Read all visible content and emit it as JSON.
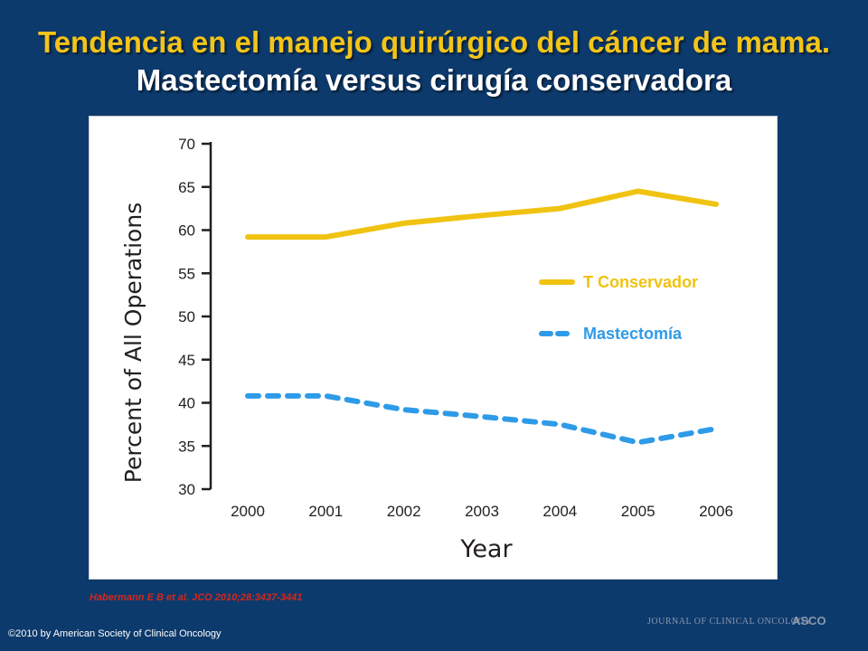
{
  "slide": {
    "title_part1": "Tendencia en el manejo quirúrgico del cáncer de mama.",
    "title_part2": "Mastectomía versus cirugía conservadora",
    "citation": "Habermann E B et al. JCO 2010;28:3437-3441",
    "copyright": "©2010 by American Society of Clinical Oncology",
    "journal_logo": "JOURNAL OF CLINICAL ONCOLOGY",
    "asco_logo": "ASCO"
  },
  "chart_data": {
    "type": "line",
    "xlabel": "Year",
    "ylabel": "Percent of All Operations",
    "x": [
      2000,
      2001,
      2002,
      2003,
      2004,
      2005,
      2006
    ],
    "ylim": [
      30,
      70
    ],
    "yticks": [
      30,
      35,
      40,
      45,
      50,
      55,
      60,
      65,
      70
    ],
    "grid": false,
    "legend_position": "right",
    "series": [
      {
        "name": "T Conservador",
        "color": "#f0c312",
        "style": "solid",
        "values": [
          59.2,
          59.2,
          60.8,
          61.7,
          62.5,
          64.5,
          63.0
        ]
      },
      {
        "name": "Mastectomía",
        "color": "#2e9be8",
        "style": "dashed",
        "values": [
          40.8,
          40.8,
          39.2,
          38.4,
          37.5,
          35.4,
          37.0
        ]
      }
    ]
  }
}
